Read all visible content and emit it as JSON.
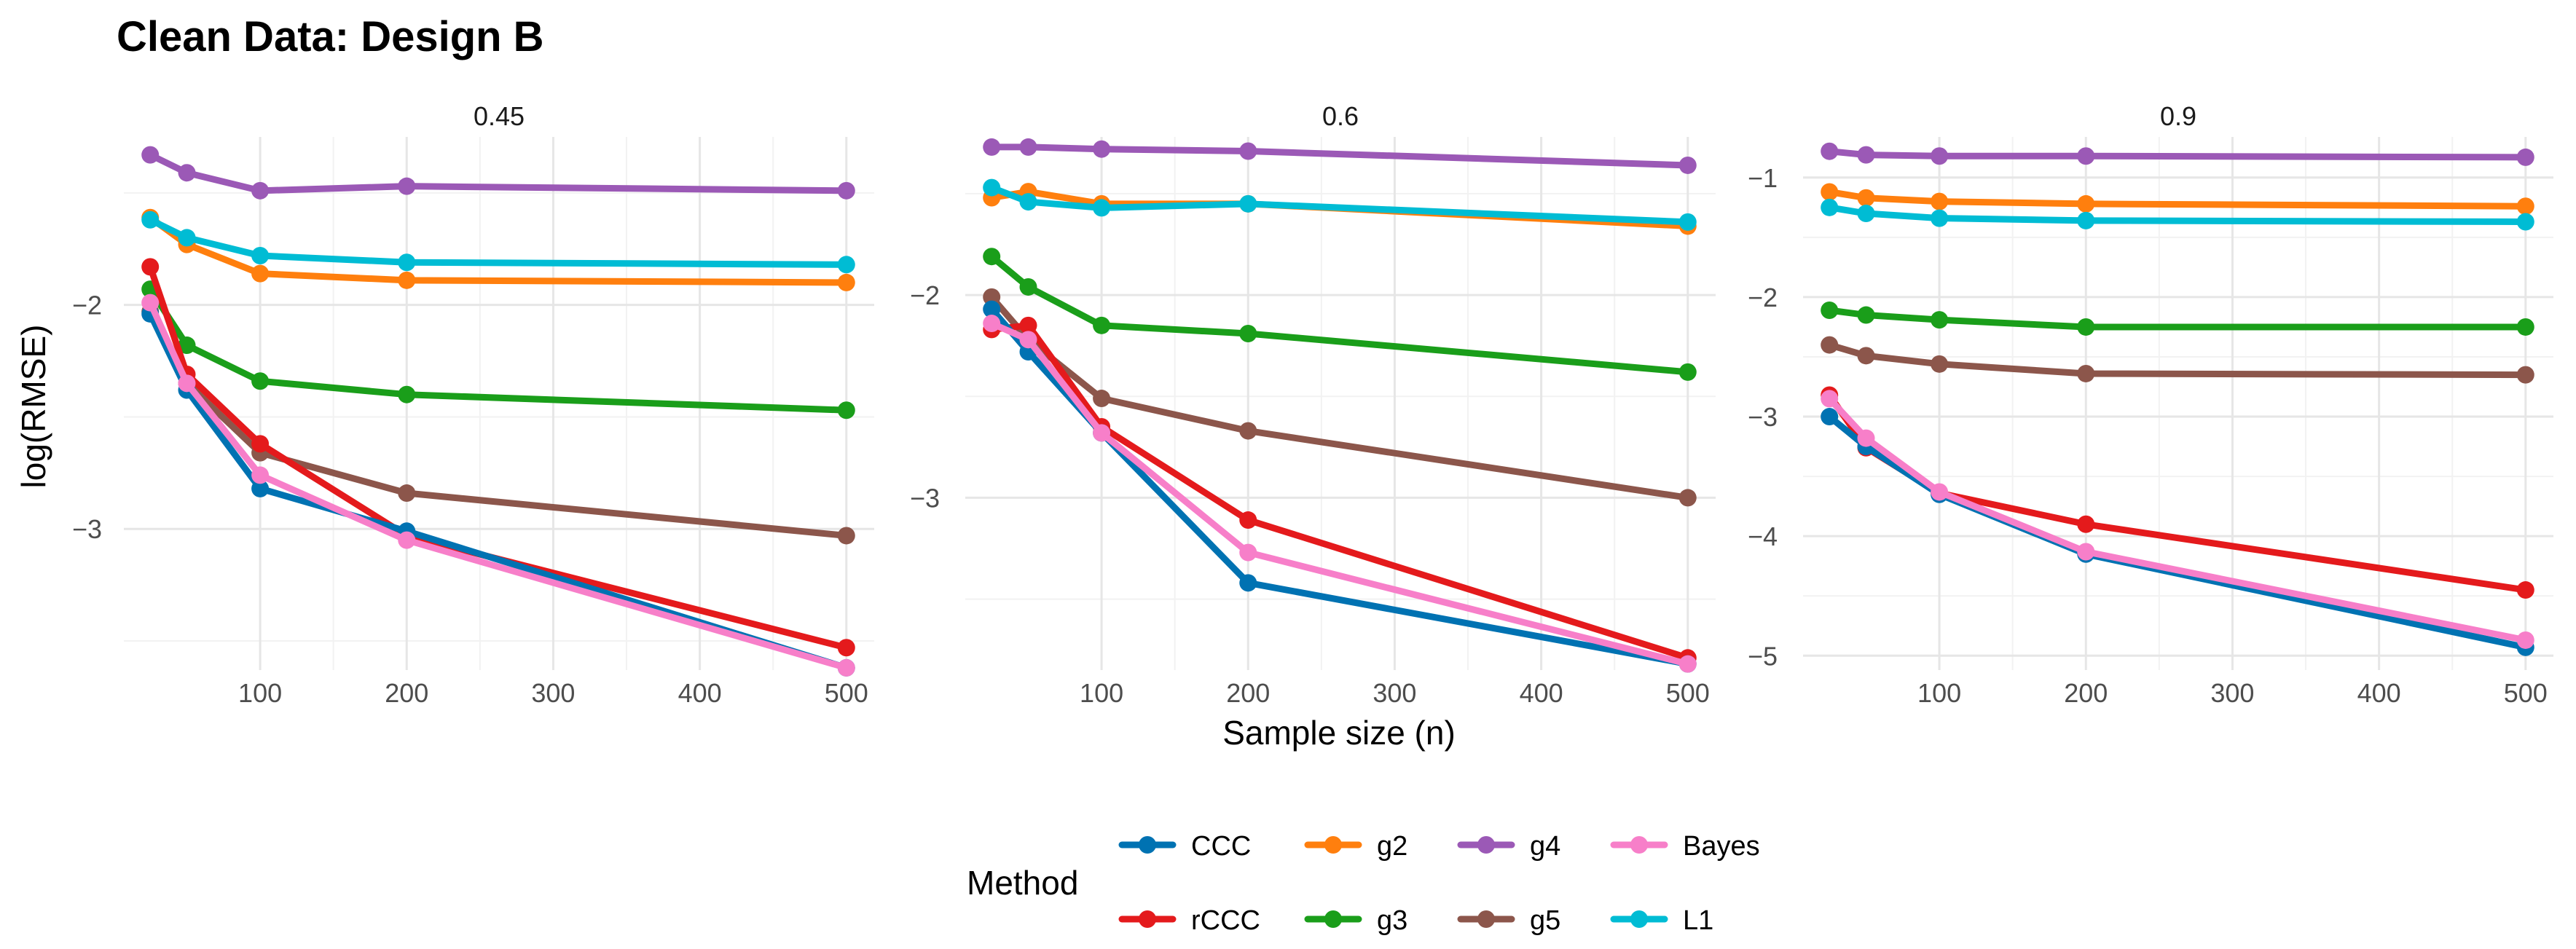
{
  "chart_data": {
    "type": "line",
    "title": "Clean Data: Design B",
    "xlabel": "Sample size (n)",
    "ylabel": "log(RMSE)",
    "x": [
      25,
      50,
      100,
      200,
      500
    ],
    "x_ticks": [
      100,
      200,
      300,
      400,
      500
    ],
    "xlim": [
      7,
      519
    ],
    "legend": {
      "title": "Method",
      "position": "bottom",
      "order": [
        "CCC",
        "g2",
        "g4",
        "Bayes",
        "rCCC",
        "g3",
        "g5",
        "L1"
      ]
    },
    "colors": {
      "CCC": "#0072B2",
      "rCCC": "#E41A1C",
      "g2": "#FF7F0E",
      "g3": "#1A9E1A",
      "g4": "#9B59B6",
      "g5": "#8C564B",
      "Bayes": "#F77FC9",
      "L1": "#00BCD4"
    },
    "panels": [
      {
        "label": "0.45",
        "ylim": [
          -3.63,
          -1.25
        ],
        "y_ticks": [
          -3,
          -2
        ],
        "y_tick_labels": [
          "−3",
          "−2"
        ],
        "series": [
          {
            "name": "g4",
            "values": [
              -1.33,
              -1.41,
              -1.49,
              -1.47,
              -1.49
            ]
          },
          {
            "name": "g2",
            "values": [
              -1.61,
              -1.73,
              -1.86,
              -1.89,
              -1.9
            ]
          },
          {
            "name": "L1",
            "values": [
              -1.62,
              -1.7,
              -1.78,
              -1.81,
              -1.82
            ]
          },
          {
            "name": "g3",
            "values": [
              -1.93,
              -2.18,
              -2.34,
              -2.4,
              -2.47
            ]
          },
          {
            "name": "g5",
            "values": [
              -2.03,
              -2.35,
              -2.66,
              -2.84,
              -3.03
            ]
          },
          {
            "name": "rCCC",
            "values": [
              -1.83,
              -2.31,
              -2.62,
              -3.03,
              -3.53
            ]
          },
          {
            "name": "CCC",
            "values": [
              -2.04,
              -2.38,
              -2.82,
              -3.01,
              -3.62
            ]
          },
          {
            "name": "Bayes",
            "values": [
              -1.99,
              -2.35,
              -2.76,
              -3.05,
              -3.62
            ]
          }
        ]
      },
      {
        "label": "0.6",
        "ylim": [
          -3.85,
          -1.22
        ],
        "y_ticks": [
          -3,
          -2
        ],
        "y_tick_labels": [
          "−3",
          "−2"
        ],
        "series": [
          {
            "name": "g4",
            "values": [
              -1.27,
              -1.27,
              -1.28,
              -1.29,
              -1.36
            ]
          },
          {
            "name": "g2",
            "values": [
              -1.52,
              -1.49,
              -1.55,
              -1.55,
              -1.66
            ]
          },
          {
            "name": "L1",
            "values": [
              -1.47,
              -1.54,
              -1.57,
              -1.55,
              -1.64
            ]
          },
          {
            "name": "g3",
            "values": [
              -1.81,
              -1.96,
              -2.15,
              -2.19,
              -2.38
            ]
          },
          {
            "name": "g5",
            "values": [
              -2.01,
              -2.22,
              -2.51,
              -2.67,
              -3.0
            ]
          },
          {
            "name": "rCCC",
            "values": [
              -2.17,
              -2.15,
              -2.65,
              -3.11,
              -3.79
            ]
          },
          {
            "name": "CCC",
            "values": [
              -2.07,
              -2.28,
              -2.68,
              -3.42,
              -3.82
            ]
          },
          {
            "name": "Bayes",
            "values": [
              -2.14,
              -2.22,
              -2.68,
              -3.27,
              -3.82
            ]
          }
        ]
      },
      {
        "label": "0.9",
        "ylim": [
          -5.12,
          -0.66
        ],
        "y_ticks": [
          -5,
          -4,
          -3,
          -2,
          -1
        ],
        "y_tick_labels": [
          "−5",
          "−4",
          "−3",
          "−2",
          "−1"
        ],
        "series": [
          {
            "name": "g4",
            "values": [
              -0.78,
              -0.81,
              -0.82,
              -0.82,
              -0.83
            ]
          },
          {
            "name": "g2",
            "values": [
              -1.12,
              -1.17,
              -1.2,
              -1.22,
              -1.24
            ]
          },
          {
            "name": "L1",
            "values": [
              -1.25,
              -1.3,
              -1.34,
              -1.36,
              -1.37
            ]
          },
          {
            "name": "g3",
            "values": [
              -2.11,
              -2.15,
              -2.19,
              -2.25,
              -2.25
            ]
          },
          {
            "name": "g5",
            "values": [
              -2.4,
              -2.49,
              -2.56,
              -2.64,
              -2.65
            ]
          },
          {
            "name": "rCCC",
            "values": [
              -2.82,
              -3.26,
              -3.64,
              -3.9,
              -4.45
            ]
          },
          {
            "name": "CCC",
            "values": [
              -3.0,
              -3.25,
              -3.65,
              -4.15,
              -4.93
            ]
          },
          {
            "name": "Bayes",
            "values": [
              -2.85,
              -3.18,
              -3.63,
              -4.13,
              -4.87
            ]
          }
        ]
      }
    ]
  }
}
